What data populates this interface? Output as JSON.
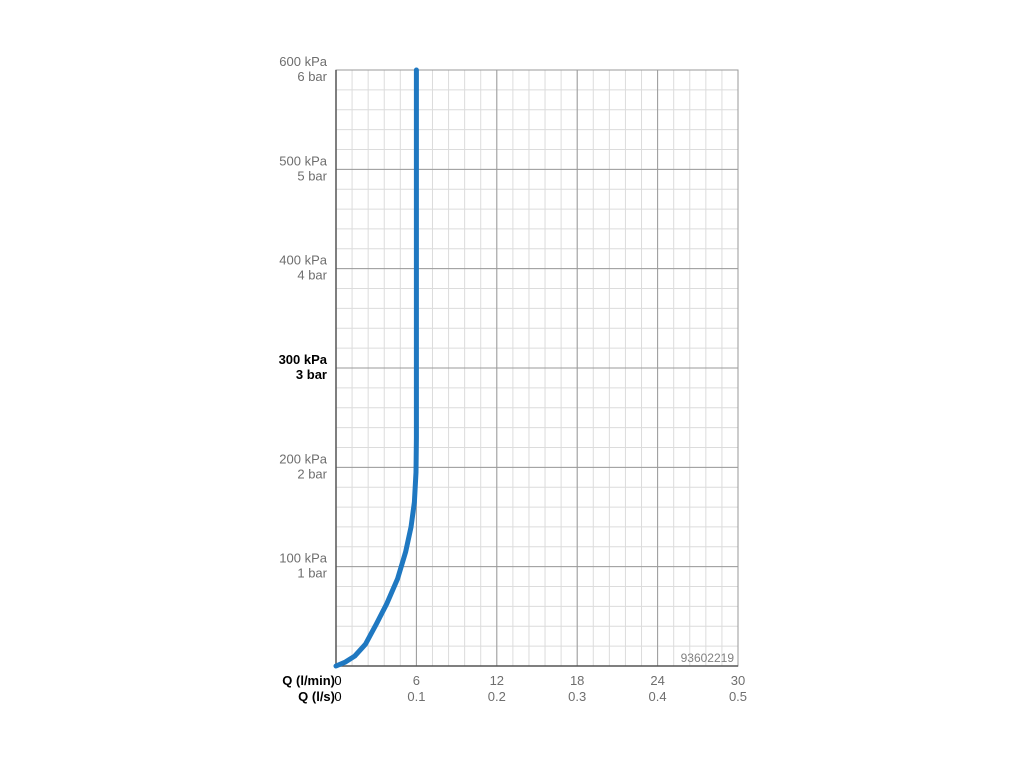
{
  "chart_data": {
    "type": "line",
    "code": "93602219",
    "x_axis_rows": [
      {
        "title": "Q (l/min)",
        "ticks": [
          "0",
          "6",
          "12",
          "18",
          "24",
          "30"
        ]
      },
      {
        "title": "Q (l/s)",
        "ticks": [
          "0",
          "0.1",
          "0.2",
          "0.3",
          "0.4",
          "0.5"
        ]
      }
    ],
    "y_axis": {
      "unit_primary": "kPa",
      "unit_secondary": "bar",
      "ticks": [
        {
          "value": 100,
          "primary": "100 kPa",
          "secondary": "1 bar",
          "emphasized": false
        },
        {
          "value": 200,
          "primary": "200 kPa",
          "secondary": "2 bar",
          "emphasized": false
        },
        {
          "value": 300,
          "primary": "300 kPa",
          "secondary": "3 bar",
          "emphasized": true
        },
        {
          "value": 400,
          "primary": "400 kPa",
          "secondary": "4 bar",
          "emphasized": false
        },
        {
          "value": 500,
          "primary": "500 kPa",
          "secondary": "5 bar",
          "emphasized": false
        },
        {
          "value": 600,
          "primary": "600 kPa",
          "secondary": "6 bar",
          "emphasized": false
        }
      ]
    },
    "xlim": [
      0,
      30
    ],
    "ylim": [
      0,
      600
    ],
    "grid": true,
    "series": [
      {
        "color": "#1f78c1",
        "points": [
          {
            "x": 0.0,
            "y": 0
          },
          {
            "x": 0.7,
            "y": 4
          },
          {
            "x": 1.4,
            "y": 10
          },
          {
            "x": 2.2,
            "y": 22
          },
          {
            "x": 3.0,
            "y": 42
          },
          {
            "x": 3.8,
            "y": 63
          },
          {
            "x": 4.6,
            "y": 88
          },
          {
            "x": 5.2,
            "y": 115
          },
          {
            "x": 5.6,
            "y": 140
          },
          {
            "x": 5.85,
            "y": 165
          },
          {
            "x": 5.97,
            "y": 195
          },
          {
            "x": 6.0,
            "y": 230
          },
          {
            "x": 6.0,
            "y": 600
          }
        ]
      }
    ]
  }
}
